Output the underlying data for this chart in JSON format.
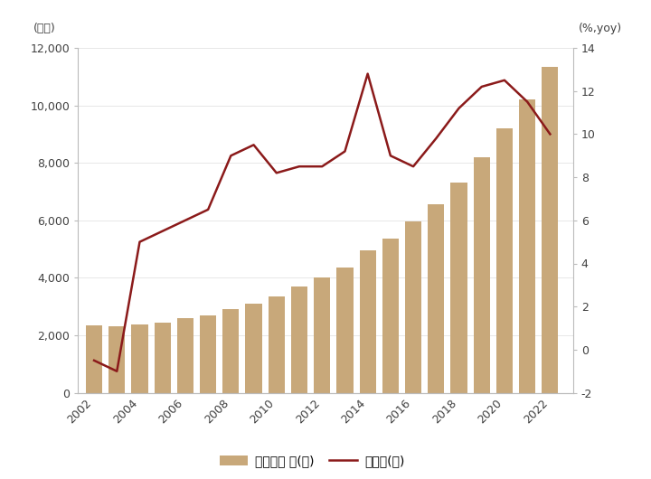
{
  "years": [
    2002,
    2003,
    2004,
    2005,
    2006,
    2007,
    2008,
    2009,
    2010,
    2011,
    2012,
    2013,
    2014,
    2015,
    2016,
    2017,
    2018,
    2019,
    2020,
    2021,
    2022
  ],
  "bar_values": [
    2350,
    2320,
    2380,
    2450,
    2600,
    2700,
    2900,
    3100,
    3350,
    3700,
    4000,
    4350,
    4950,
    5350,
    5950,
    6550,
    7300,
    8200,
    9200,
    10200,
    11350
  ],
  "line_values": [
    -0.5,
    -1.0,
    5.0,
    5.5,
    6.0,
    6.5,
    9.0,
    9.5,
    8.2,
    8.5,
    8.5,
    9.2,
    12.8,
    9.0,
    8.5,
    9.8,
    11.2,
    12.2,
    12.5,
    11.5,
    10.0
  ],
  "bar_color": "#C8A87A",
  "line_color": "#8B1A1A",
  "left_ylim": [
    0,
    12000
  ],
  "right_ylim": [
    -2,
    14
  ],
  "left_yticks": [
    0,
    2000,
    4000,
    6000,
    8000,
    10000,
    12000
  ],
  "right_yticks": [
    -2,
    0,
    2,
    4,
    6,
    8,
    10,
    12,
    14
  ],
  "xticks": [
    2002,
    2004,
    2006,
    2008,
    2010,
    2012,
    2014,
    2016,
    2018,
    2020,
    2022
  ],
  "left_ylabel": "(만개)",
  "right_ylabel": "(%,yoy)",
  "legend_bar_label": "자영업자 수(좌)",
  "legend_line_label": "증가율(우)",
  "bg_color": "#FFFFFF",
  "tick_color": "#404040",
  "line_width": 1.8,
  "bar_width": 0.72
}
